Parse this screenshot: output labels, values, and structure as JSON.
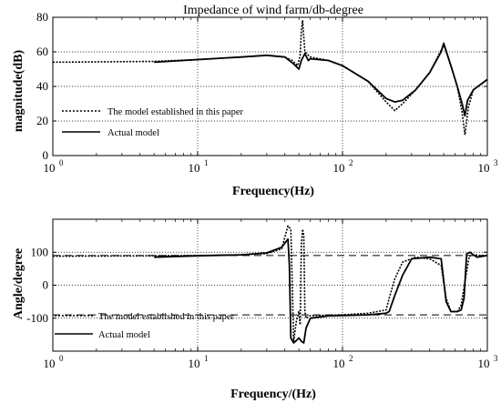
{
  "chart_data": [
    {
      "type": "line",
      "title": "Impedance of wind farm/db-degree",
      "xlabel": "Frequency(Hz)",
      "ylabel": "magnitude(dB)",
      "xscale": "log",
      "xlim": [
        1,
        1000
      ],
      "ylim": [
        0,
        80
      ],
      "yticks": [
        0,
        20,
        40,
        60,
        80
      ],
      "xticks": [
        {
          "base": "10",
          "exp": "0"
        },
        {
          "base": "10",
          "exp": "1"
        },
        {
          "base": "10",
          "exp": "2"
        },
        {
          "base": "10",
          "exp": "3"
        }
      ],
      "grid": true,
      "legend_position": "left",
      "series": [
        {
          "name": "The model established in this paper",
          "style": "dotted",
          "x": [
            1,
            5,
            10,
            20,
            30,
            40,
            45,
            49,
            51,
            52,
            53,
            55,
            60,
            80,
            100,
            150,
            200,
            230,
            260,
            320,
            400,
            480,
            500,
            560,
            620,
            670,
            700,
            740,
            800,
            1000
          ],
          "y": [
            54,
            54.5,
            55.5,
            57,
            58,
            57,
            55,
            52,
            58,
            72,
            78,
            60,
            57,
            55,
            52,
            43,
            31,
            26,
            30,
            38,
            48,
            61,
            64,
            52,
            40,
            25,
            12,
            28,
            38,
            44
          ]
        },
        {
          "name": "Actual model",
          "style": "solid",
          "x": [
            5,
            10,
            20,
            30,
            40,
            46,
            50,
            52,
            55,
            58,
            60,
            80,
            100,
            150,
            200,
            230,
            260,
            320,
            400,
            480,
            500,
            560,
            620,
            670,
            700,
            730,
            800,
            1000
          ],
          "y": [
            54,
            55.5,
            57,
            58,
            57,
            53,
            50,
            55,
            59,
            55,
            56,
            55,
            52,
            43,
            33,
            31,
            32,
            38,
            48,
            60,
            65,
            52,
            40,
            30,
            23,
            32,
            38,
            44
          ]
        }
      ]
    },
    {
      "type": "line",
      "title": "",
      "xlabel": "Frequency/(Hz)",
      "ylabel": "Angle/degree",
      "xscale": "log",
      "xlim": [
        1,
        1000
      ],
      "ylim": [
        -200,
        200
      ],
      "yticks": [
        -100,
        0,
        100
      ],
      "xticks": [
        {
          "base": "10",
          "exp": "0"
        },
        {
          "base": "10",
          "exp": "1"
        },
        {
          "base": "10",
          "exp": "2"
        },
        {
          "base": "10",
          "exp": "3"
        }
      ],
      "grid": true,
      "legend_position": "bottom-left",
      "reference_lines": [
        {
          "y": 90,
          "style": "dashed"
        },
        {
          "y": -90,
          "style": "dashed"
        }
      ],
      "series": [
        {
          "name": "The model established in this paper",
          "style": "dotted",
          "x": [
            1,
            5,
            10,
            20,
            30,
            38,
            42,
            44,
            46,
            48,
            50,
            51,
            52,
            53,
            54,
            55,
            56,
            60,
            80,
            100,
            150,
            200,
            210,
            230,
            260,
            320,
            400,
            480,
            520,
            560,
            620,
            660,
            700,
            750,
            800,
            900,
            1000
          ],
          "y": [
            88,
            89,
            90,
            92,
            96,
            110,
            180,
            170,
            -170,
            -110,
            -80,
            -120,
            120,
            170,
            150,
            -80,
            -100,
            -92,
            -91,
            -90,
            -85,
            -75,
            -40,
            20,
            70,
            85,
            80,
            60,
            -40,
            -80,
            -80,
            -60,
            10,
            88,
            92,
            90,
            90
          ]
        },
        {
          "name": "Actual model",
          "style": "solid",
          "x": [
            5,
            10,
            20,
            30,
            38,
            42,
            43,
            44,
            46,
            48,
            50,
            52,
            54,
            56,
            60,
            80,
            100,
            150,
            200,
            210,
            230,
            260,
            300,
            400,
            480,
            520,
            560,
            620,
            660,
            690,
            720,
            760,
            800,
            850,
            1000
          ],
          "y": [
            85,
            89,
            92,
            98,
            115,
            140,
            60,
            -160,
            -175,
            -168,
            -160,
            -170,
            -175,
            -130,
            -100,
            -93,
            -92,
            -90,
            -85,
            -80,
            -30,
            30,
            80,
            85,
            80,
            -50,
            -80,
            -80,
            -75,
            -40,
            95,
            100,
            92,
            85,
            90
          ]
        }
      ]
    }
  ]
}
